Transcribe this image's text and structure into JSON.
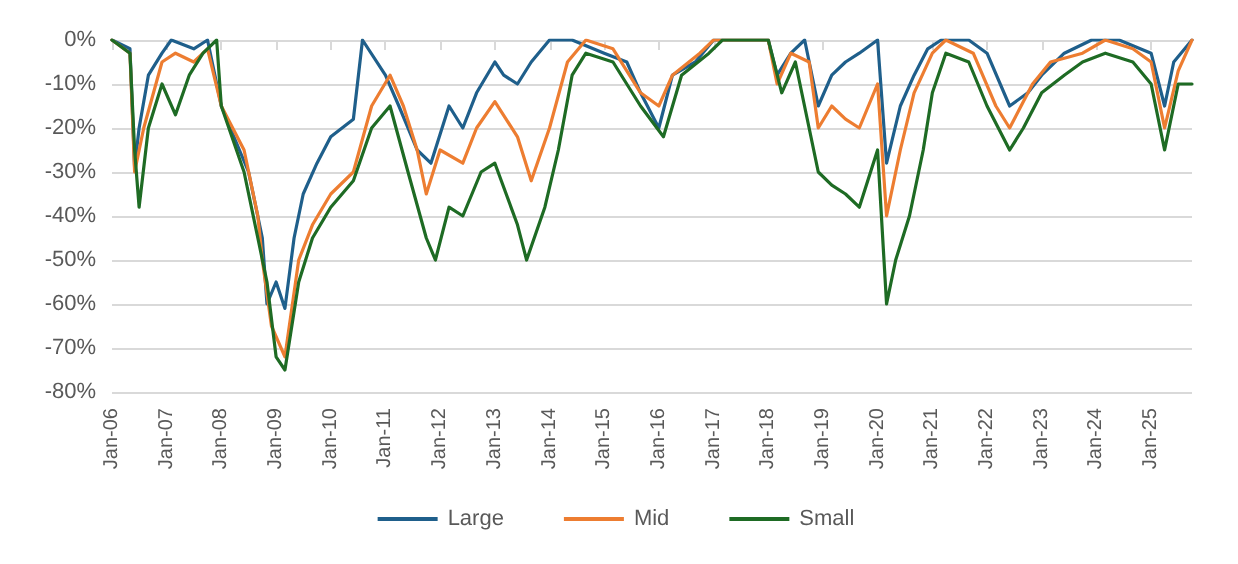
{
  "chart_data": {
    "type": "line",
    "legend": "bottom",
    "grid": "y",
    "marker": "none",
    "line_style": "solid",
    "xlim": [
      "2006-01",
      "2025-10"
    ],
    "xticks": [
      {
        "value": "2006-01",
        "label": "Jan-06"
      },
      {
        "value": "2007-01",
        "label": "Jan-07"
      },
      {
        "value": "2008-01",
        "label": "Jan-08"
      },
      {
        "value": "2009-01",
        "label": "Jan-09"
      },
      {
        "value": "2010-01",
        "label": "Jan-10"
      },
      {
        "value": "2011-01",
        "label": "Jan-11"
      },
      {
        "value": "2012-01",
        "label": "Jan-12"
      },
      {
        "value": "2013-01",
        "label": "Jan-13"
      },
      {
        "value": "2014-01",
        "label": "Jan-14"
      },
      {
        "value": "2015-01",
        "label": "Jan-15"
      },
      {
        "value": "2016-01",
        "label": "Jan-16"
      },
      {
        "value": "2017-01",
        "label": "Jan-17"
      },
      {
        "value": "2018-01",
        "label": "Jan-18"
      },
      {
        "value": "2019-01",
        "label": "Jan-19"
      },
      {
        "value": "2020-01",
        "label": "Jan-20"
      },
      {
        "value": "2021-01",
        "label": "Jan-21"
      },
      {
        "value": "2022-01",
        "label": "Jan-22"
      },
      {
        "value": "2023-01",
        "label": "Jan-23"
      },
      {
        "value": "2024-01",
        "label": "Jan-24"
      },
      {
        "value": "2025-01",
        "label": "Jan-25"
      }
    ],
    "ylim": [
      -80,
      0
    ],
    "yticks": [
      {
        "value": -80,
        "label": "-80%"
      },
      {
        "value": -70,
        "label": "-70%"
      },
      {
        "value": -60,
        "label": "-60%"
      },
      {
        "value": -50,
        "label": "-50%"
      },
      {
        "value": -40,
        "label": "-40%"
      },
      {
        "value": -30,
        "label": "-30%"
      },
      {
        "value": -20,
        "label": "-20%"
      },
      {
        "value": -10,
        "label": "-10%"
      },
      {
        "value": 0,
        "label": "0%"
      }
    ],
    "series": [
      {
        "name": "Large",
        "color": "#1f5f8b",
        "x": [
          "2006-01",
          "2006-05",
          "2006-06",
          "2006-07",
          "2006-09",
          "2006-12",
          "2007-02",
          "2007-07",
          "2007-10",
          "2008-01",
          "2008-03",
          "2008-07",
          "2008-10",
          "2008-11",
          "2009-01",
          "2009-03",
          "2009-05",
          "2009-07",
          "2009-10",
          "2010-01",
          "2010-06",
          "2010-08",
          "2011-01",
          "2011-04",
          "2011-08",
          "2011-11",
          "2012-03",
          "2012-06",
          "2012-09",
          "2013-01",
          "2013-03",
          "2013-06",
          "2013-09",
          "2014-01",
          "2014-06",
          "2015-01",
          "2015-06",
          "2015-09",
          "2016-01",
          "2016-04",
          "2016-09",
          "2017-01",
          "2017-06",
          "2018-01",
          "2018-03",
          "2018-06",
          "2018-09",
          "2018-12",
          "2019-03",
          "2019-06",
          "2019-09",
          "2020-01",
          "2020-03",
          "2020-06",
          "2020-09",
          "2020-12",
          "2021-03",
          "2021-09",
          "2022-01",
          "2022-06",
          "2022-10",
          "2023-01",
          "2023-06",
          "2023-12",
          "2024-06",
          "2025-01",
          "2025-04",
          "2025-06",
          "2025-10"
        ],
        "values": [
          0,
          -2,
          -29,
          -20,
          -8,
          -3,
          0,
          -2,
          0,
          -15,
          -20,
          -30,
          -45,
          -60,
          -55,
          -61,
          -45,
          -35,
          -28,
          -22,
          -18,
          0,
          -8,
          -15,
          -25,
          -28,
          -15,
          -20,
          -12,
          -5,
          -8,
          -10,
          -5,
          0,
          0,
          -3,
          -5,
          -12,
          -20,
          -8,
          -5,
          0,
          0,
          0,
          -8,
          -3,
          0,
          -15,
          -8,
          -5,
          -3,
          0,
          -28,
          -15,
          -8,
          -2,
          0,
          0,
          -3,
          -15,
          -12,
          -8,
          -3,
          0,
          0,
          -3,
          -15,
          -5,
          0
        ]
      },
      {
        "name": "Mid",
        "color": "#ed7d31",
        "x": [
          "2006-01",
          "2006-05",
          "2006-06",
          "2006-08",
          "2006-12",
          "2007-03",
          "2007-07",
          "2007-10",
          "2008-01",
          "2008-06",
          "2008-09",
          "2008-10",
          "2008-12",
          "2009-03",
          "2009-06",
          "2009-09",
          "2010-01",
          "2010-06",
          "2010-10",
          "2011-02",
          "2011-05",
          "2011-08",
          "2011-10",
          "2012-01",
          "2012-06",
          "2012-09",
          "2013-01",
          "2013-06",
          "2013-09",
          "2014-01",
          "2014-05",
          "2014-09",
          "2015-03",
          "2015-09",
          "2016-01",
          "2016-04",
          "2016-10",
          "2017-01",
          "2018-01",
          "2018-03",
          "2018-06",
          "2018-10",
          "2018-12",
          "2019-03",
          "2019-06",
          "2019-09",
          "2020-01",
          "2020-03",
          "2020-06",
          "2020-09",
          "2021-01",
          "2021-04",
          "2021-10",
          "2022-03",
          "2022-06",
          "2022-11",
          "2023-03",
          "2023-10",
          "2024-03",
          "2024-09",
          "2025-01",
          "2025-04",
          "2025-07",
          "2025-10"
        ],
        "values": [
          0,
          -3,
          -30,
          -20,
          -5,
          -3,
          -5,
          -2,
          -15,
          -25,
          -40,
          -50,
          -65,
          -72,
          -50,
          -42,
          -35,
          -30,
          -15,
          -8,
          -15,
          -25,
          -35,
          -25,
          -28,
          -20,
          -14,
          -22,
          -32,
          -20,
          -5,
          0,
          -2,
          -12,
          -15,
          -8,
          -3,
          0,
          0,
          -10,
          -3,
          -5,
          -20,
          -15,
          -18,
          -20,
          -10,
          -40,
          -25,
          -12,
          -3,
          0,
          -3,
          -15,
          -20,
          -10,
          -5,
          -3,
          0,
          -2,
          -5,
          -20,
          -7,
          0
        ]
      },
      {
        "name": "Small",
        "color": "#1e6b24",
        "x": [
          "2006-01",
          "2006-05",
          "2006-06",
          "2006-07",
          "2006-09",
          "2006-12",
          "2007-03",
          "2007-06",
          "2007-09",
          "2007-12",
          "2008-01",
          "2008-06",
          "2008-09",
          "2008-11",
          "2009-01",
          "2009-03",
          "2009-06",
          "2009-09",
          "2010-01",
          "2010-06",
          "2010-10",
          "2011-02",
          "2011-06",
          "2011-10",
          "2011-12",
          "2012-03",
          "2012-06",
          "2012-10",
          "2013-01",
          "2013-06",
          "2013-08",
          "2013-12",
          "2014-03",
          "2014-06",
          "2014-09",
          "2015-03",
          "2015-09",
          "2016-02",
          "2016-06",
          "2016-12",
          "2017-03",
          "2018-01",
          "2018-04",
          "2018-07",
          "2018-12",
          "2019-03",
          "2019-06",
          "2019-09",
          "2020-01",
          "2020-03",
          "2020-05",
          "2020-08",
          "2020-11",
          "2021-01",
          "2021-04",
          "2021-09",
          "2022-01",
          "2022-06",
          "2022-09",
          "2023-01",
          "2023-06",
          "2023-10",
          "2024-03",
          "2024-09",
          "2025-01",
          "2025-04",
          "2025-07",
          "2025-10"
        ],
        "values": [
          0,
          -3,
          -25,
          -38,
          -20,
          -10,
          -17,
          -8,
          -3,
          0,
          -15,
          -30,
          -45,
          -55,
          -72,
          -75,
          -55,
          -45,
          -38,
          -32,
          -20,
          -15,
          -30,
          -45,
          -50,
          -38,
          -40,
          -30,
          -28,
          -42,
          -50,
          -38,
          -25,
          -8,
          -3,
          -5,
          -15,
          -22,
          -8,
          -3,
          0,
          0,
          -12,
          -5,
          -30,
          -33,
          -35,
          -38,
          -25,
          -60,
          -50,
          -40,
          -25,
          -12,
          -3,
          -5,
          -15,
          -25,
          -20,
          -12,
          -8,
          -5,
          -3,
          -5,
          -10,
          -25,
          -10,
          -10
        ]
      }
    ]
  }
}
